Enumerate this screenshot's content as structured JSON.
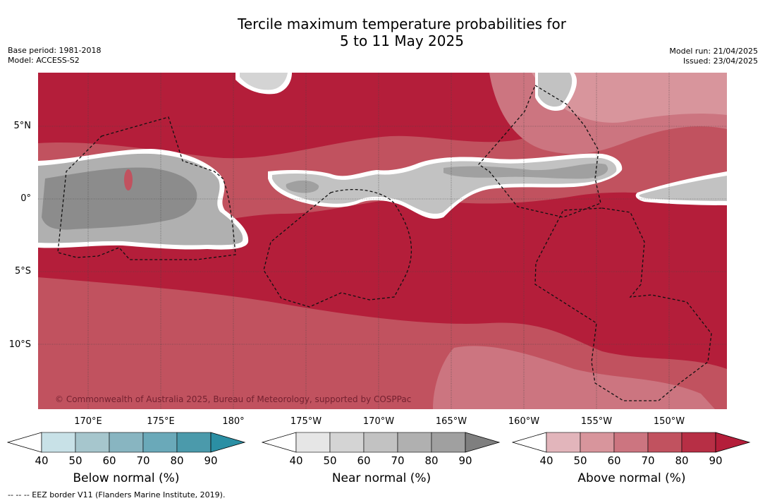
{
  "header": {
    "title_line1": "Tercile maximum temperature probabilities for",
    "title_line2": "5 to 11 May 2025",
    "base_period": "Base period: 1981-2018",
    "model": "Model: ACCESS-S2",
    "model_run": "Model run: 21/04/2025",
    "issued": "Issued: 23/04/2025"
  },
  "map": {
    "copyright": "© Commonwealth of Australia 2025, Bureau of Meteorology, supported by COSPPac",
    "lat_labels": [
      "5°N",
      "0°",
      "5°S",
      "10°S"
    ],
    "lon_labels": [
      "170°E",
      "175°E",
      "180°",
      "175°W",
      "170°W",
      "165°W",
      "160°W",
      "155°W",
      "150°W"
    ]
  },
  "legends": {
    "below": {
      "label": "Below normal (%)",
      "ticks": [
        "40",
        "50",
        "60",
        "70",
        "80",
        "90"
      ],
      "colors": [
        "#c8e1e7",
        "#a6c6cd",
        "#88b5c1",
        "#6aa9b9",
        "#4b9aab",
        "#2b8fa4"
      ]
    },
    "near": {
      "label": "Near normal (%)",
      "ticks": [
        "40",
        "50",
        "60",
        "70",
        "80",
        "90"
      ],
      "colors": [
        "#e6e6e6",
        "#d4d4d4",
        "#c2c2c2",
        "#b0b0b0",
        "#a0a0a0",
        "#7f7f7f"
      ]
    },
    "above": {
      "label": "Above normal (%)",
      "ticks": [
        "40",
        "50",
        "60",
        "70",
        "80",
        "90"
      ],
      "colors": [
        "#e2b5bb",
        "#d8959c",
        "#cc7580",
        "#c1525f",
        "#b72f45",
        "#b41e3a"
      ]
    }
  },
  "footnote": "--  --  -- EEZ border V11 (Flanders Marine Institute, 2019)."
}
